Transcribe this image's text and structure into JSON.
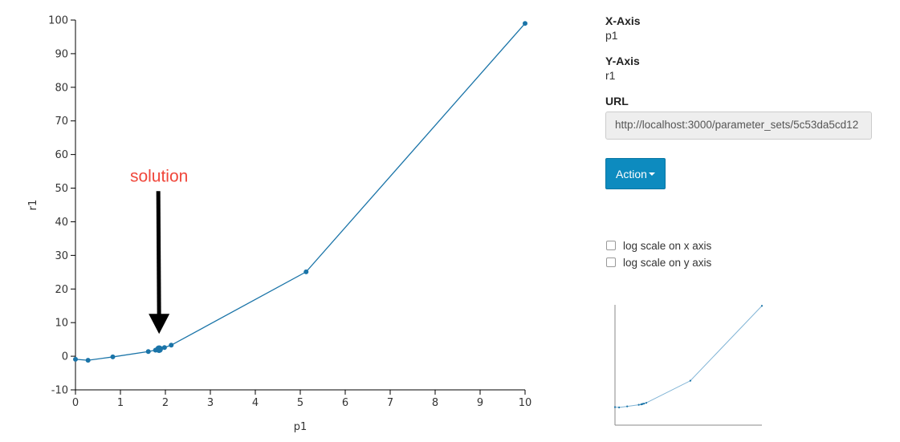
{
  "chart_data": {
    "type": "line",
    "xlabel": "p1",
    "ylabel": "r1",
    "xlim": [
      0,
      10
    ],
    "ylim": [
      -10,
      100
    ],
    "xticks": [
      0,
      1,
      2,
      3,
      4,
      5,
      6,
      7,
      8,
      9,
      10
    ],
    "yticks": [
      -10,
      0,
      10,
      20,
      30,
      40,
      50,
      60,
      70,
      80,
      90,
      100
    ],
    "series": [
      {
        "x": [
          0,
          0.28,
          0.83,
          1.62,
          1.78,
          1.83,
          1.86,
          1.89,
          1.98,
          2.13,
          5.13,
          10
        ],
        "y": [
          -0.9,
          -1.2,
          -0.2,
          1.4,
          1.8,
          2.0,
          2.1,
          2.3,
          2.6,
          3.3,
          25.1,
          99
        ]
      }
    ],
    "highlight": {
      "x": 1.86,
      "y": 2.1
    },
    "annotation": {
      "text": "solution",
      "x": 1.86,
      "y": 2.1
    },
    "color": "#1a74a8"
  },
  "panel": {
    "x_axis_label": "X-Axis",
    "x_axis_value": "p1",
    "y_axis_label": "Y-Axis",
    "y_axis_value": "r1",
    "url_label": "URL",
    "url_value": "http://localhost:3000/parameter_sets/5c53da5cd12"
  },
  "action_button": {
    "label": "Action"
  },
  "options": {
    "log_x_label": "log scale on x axis",
    "log_y_label": "log scale on y axis",
    "log_x_checked": false,
    "log_y_checked": false
  }
}
